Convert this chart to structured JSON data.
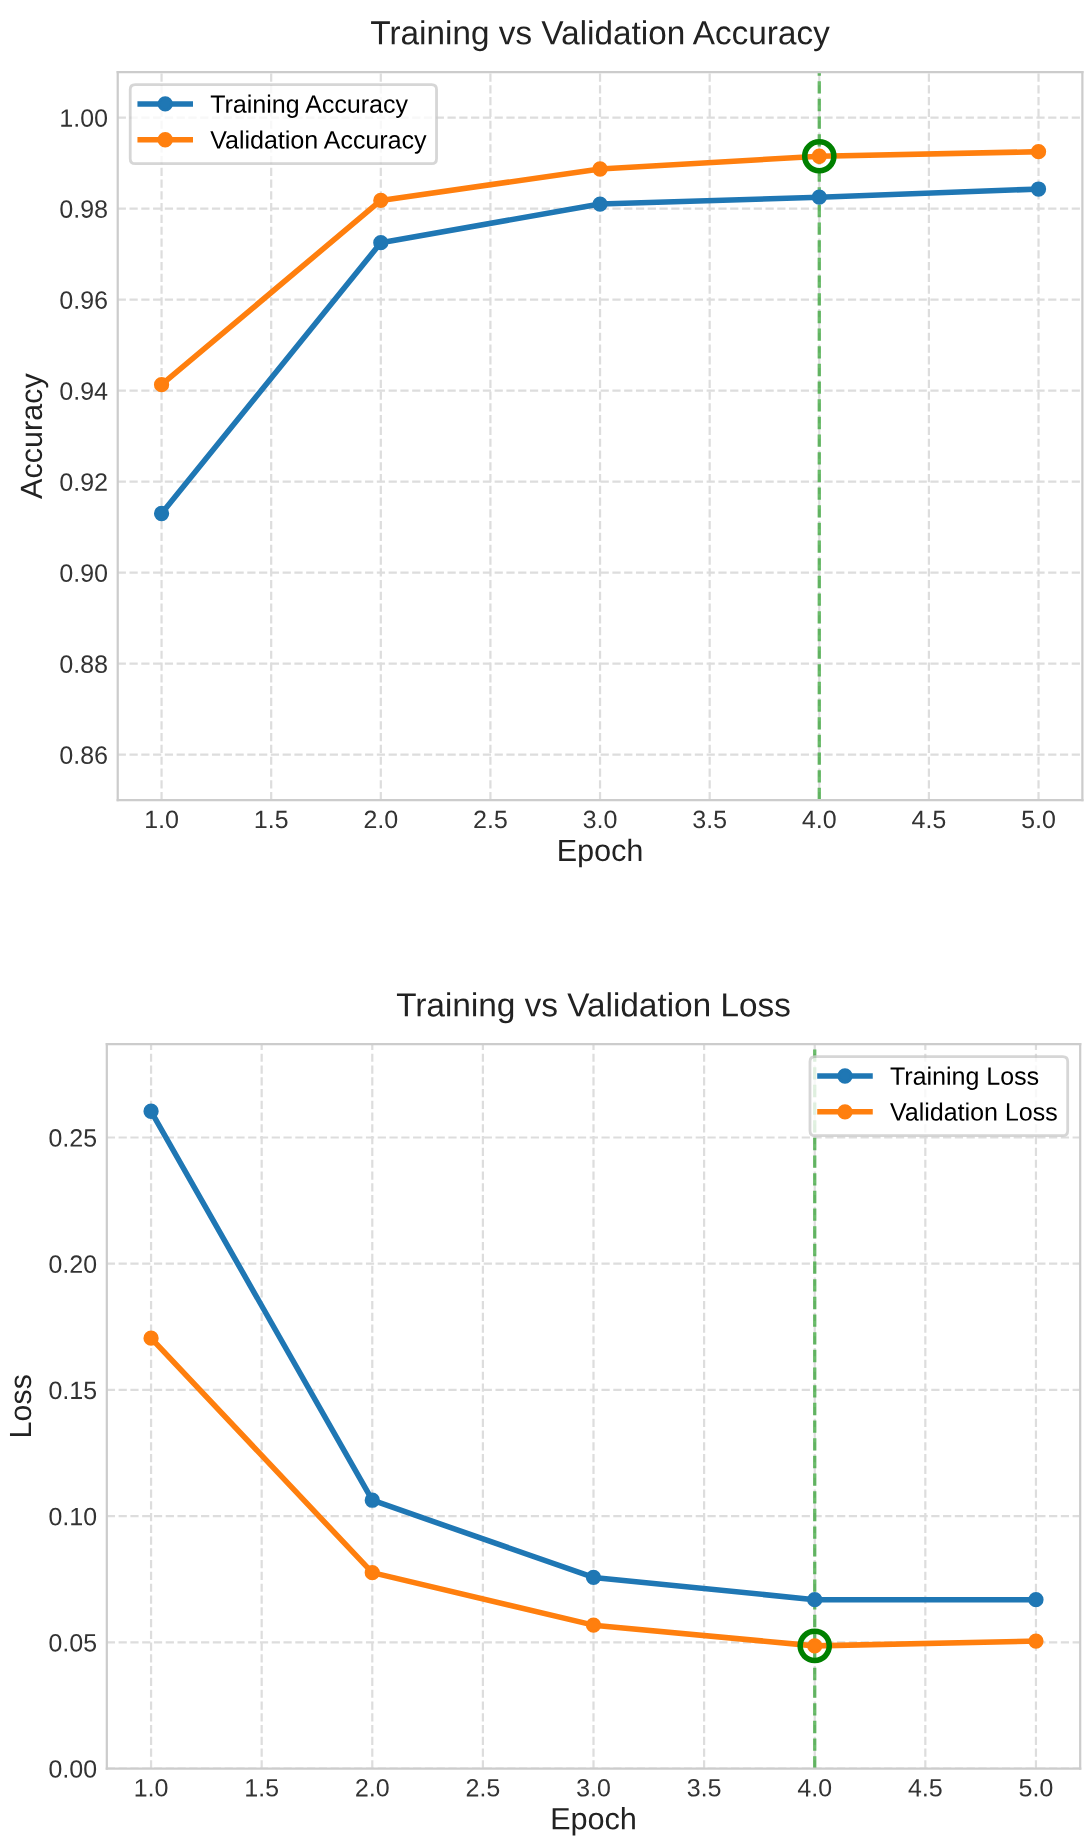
{
  "chart_data": [
    {
      "type": "line",
      "title": "Training vs Validation Accuracy",
      "xlabel": "Epoch",
      "ylabel": "Accuracy",
      "x": [
        1,
        2,
        3,
        4,
        5
      ],
      "series": [
        {
          "name": "Training Accuracy",
          "color": "#1f77b4",
          "values": [
            0.913,
            0.9725,
            0.981,
            0.9825,
            0.9843
          ]
        },
        {
          "name": "Validation Accuracy",
          "color": "#ff7f0e",
          "values": [
            0.9413,
            0.9818,
            0.9887,
            0.9915,
            0.9925
          ]
        },
        {
          "type": "scatter",
          "color": "#008000",
          "x": [
            4
          ],
          "values": [
            0.9915
          ]
        }
      ],
      "xlim": [
        0.8,
        5.2
      ],
      "xticks": [
        {
          "value": 1,
          "label": "1.0"
        },
        1.5,
        {
          "value": 2,
          "label": "2.0"
        },
        2.5,
        {
          "value": 3,
          "label": "3.0"
        },
        3.5,
        {
          "value": 4,
          "label": "4.0"
        },
        4.5,
        {
          "value": 5,
          "label": "5.0"
        }
      ],
      "ylim": [
        0.85,
        1.01
      ],
      "yticks": [
        {
          "value": 0.86,
          "label": "0.86"
        },
        {
          "value": 0.88,
          "label": "0.88"
        },
        {
          "value": 0.9,
          "label": "0.90"
        },
        {
          "value": 0.92,
          "label": "0.92"
        },
        {
          "value": 0.94,
          "label": "0.94"
        },
        {
          "value": 0.96,
          "label": "0.96"
        },
        {
          "value": 0.98,
          "label": "0.98"
        },
        {
          "value": 1.0,
          "label": "1.00"
        }
      ],
      "ref_lines": [
        {
          "axis": "x",
          "value": 4,
          "color": "#2ca02c",
          "line_style": "dashed"
        }
      ],
      "grid": true,
      "legend": "top left",
      "marker": "circle",
      "line_style": "solid"
    },
    {
      "type": "line",
      "title": "Training vs Validation Loss",
      "xlabel": "Epoch",
      "ylabel": "Loss",
      "x": [
        1,
        2,
        3,
        4,
        5
      ],
      "series": [
        {
          "name": "Training Loss",
          "color": "#1f77b4",
          "values": [
            0.2604,
            0.1063,
            0.0757,
            0.0669,
            0.0669
          ]
        },
        {
          "name": "Validation Loss",
          "color": "#ff7f0e",
          "values": [
            0.1705,
            0.0776,
            0.0568,
            0.0486,
            0.0505
          ]
        },
        {
          "type": "scatter",
          "color": "#008000",
          "x": [
            4
          ],
          "values": [
            0.0486
          ]
        }
      ],
      "xlim": [
        0.8,
        5.2
      ],
      "xticks": [
        {
          "value": 1,
          "label": "1.0"
        },
        1.5,
        {
          "value": 2,
          "label": "2.0"
        },
        2.5,
        {
          "value": 3,
          "label": "3.0"
        },
        3.5,
        {
          "value": 4,
          "label": "4.0"
        },
        4.5,
        {
          "value": 5,
          "label": "5.0"
        }
      ],
      "ylim": [
        0,
        0.287
      ],
      "yticks": [
        {
          "value": 0,
          "label": "0.00"
        },
        {
          "value": 0.05,
          "label": "0.05"
        },
        {
          "value": 0.1,
          "label": "0.10"
        },
        {
          "value": 0.15,
          "label": "0.15"
        },
        {
          "value": 0.2,
          "label": "0.20"
        },
        {
          "value": 0.25,
          "label": "0.25"
        }
      ],
      "ref_lines": [
        {
          "axis": "x",
          "value": 4,
          "color": "#2ca02c",
          "line_style": "dashed"
        }
      ],
      "grid": true,
      "legend": "top right",
      "marker": "circle",
      "line_style": "solid"
    }
  ]
}
